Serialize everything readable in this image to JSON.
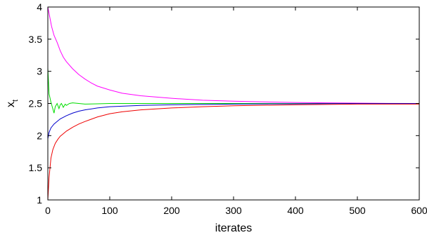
{
  "chart_data": {
    "type": "line",
    "xlabel": "iterates",
    "ylabel": "x",
    "ylabel_subscript": "t",
    "xlim": [
      0,
      600
    ],
    "ylim": [
      1,
      4
    ],
    "x_ticks": [
      0,
      100,
      200,
      300,
      400,
      500,
      600
    ],
    "x_tick_labels": [
      "0",
      "100",
      "200",
      "300",
      "400",
      "500",
      "600"
    ],
    "y_ticks": [
      1,
      1.5,
      2,
      2.5,
      3,
      3.5,
      4
    ],
    "y_tick_labels": [
      "1",
      "1.5",
      "2",
      "2.5",
      "3",
      "3.5",
      "4"
    ],
    "grid": false,
    "series": [
      {
        "color": "#ff00ff",
        "x": [
          0,
          3,
          6,
          10,
          15,
          20,
          25,
          30,
          40,
          50,
          60,
          70,
          80,
          100,
          120,
          150,
          200,
          250,
          300,
          350,
          400,
          450,
          500,
          550,
          600
        ],
        "y": [
          4.0,
          3.85,
          3.7,
          3.56,
          3.45,
          3.32,
          3.22,
          3.15,
          3.04,
          2.95,
          2.88,
          2.82,
          2.77,
          2.71,
          2.66,
          2.62,
          2.58,
          2.55,
          2.535,
          2.525,
          2.515,
          2.51,
          2.505,
          2.502,
          2.5
        ]
      },
      {
        "color": "#00dd00",
        "x": [
          0,
          2,
          5,
          8,
          10,
          12,
          15,
          18,
          20,
          22,
          25,
          28,
          30,
          35,
          40,
          50,
          60,
          80,
          100,
          200,
          300,
          400,
          500,
          600
        ],
        "y": [
          3.05,
          2.65,
          2.52,
          2.42,
          2.35,
          2.45,
          2.5,
          2.42,
          2.48,
          2.5,
          2.44,
          2.49,
          2.47,
          2.5,
          2.51,
          2.5,
          2.49,
          2.495,
          2.5,
          2.5,
          2.5,
          2.5,
          2.5,
          2.5
        ]
      },
      {
        "color": "#0000cc",
        "x": [
          0,
          2,
          5,
          10,
          15,
          20,
          30,
          40,
          50,
          60,
          80,
          100,
          150,
          200,
          300,
          400,
          500,
          600
        ],
        "y": [
          1.95,
          2.05,
          2.12,
          2.18,
          2.22,
          2.26,
          2.31,
          2.35,
          2.38,
          2.4,
          2.43,
          2.45,
          2.47,
          2.48,
          2.49,
          2.495,
          2.5,
          2.5
        ]
      },
      {
        "color": "#ee0000",
        "x": [
          0,
          2,
          5,
          8,
          12,
          16,
          20,
          25,
          30,
          40,
          50,
          60,
          80,
          100,
          120,
          150,
          200,
          250,
          300,
          400,
          500,
          600
        ],
        "y": [
          1.0,
          1.35,
          1.65,
          1.78,
          1.88,
          1.94,
          1.99,
          2.03,
          2.07,
          2.13,
          2.18,
          2.22,
          2.29,
          2.34,
          2.37,
          2.4,
          2.43,
          2.45,
          2.465,
          2.48,
          2.49,
          2.49
        ]
      }
    ]
  }
}
